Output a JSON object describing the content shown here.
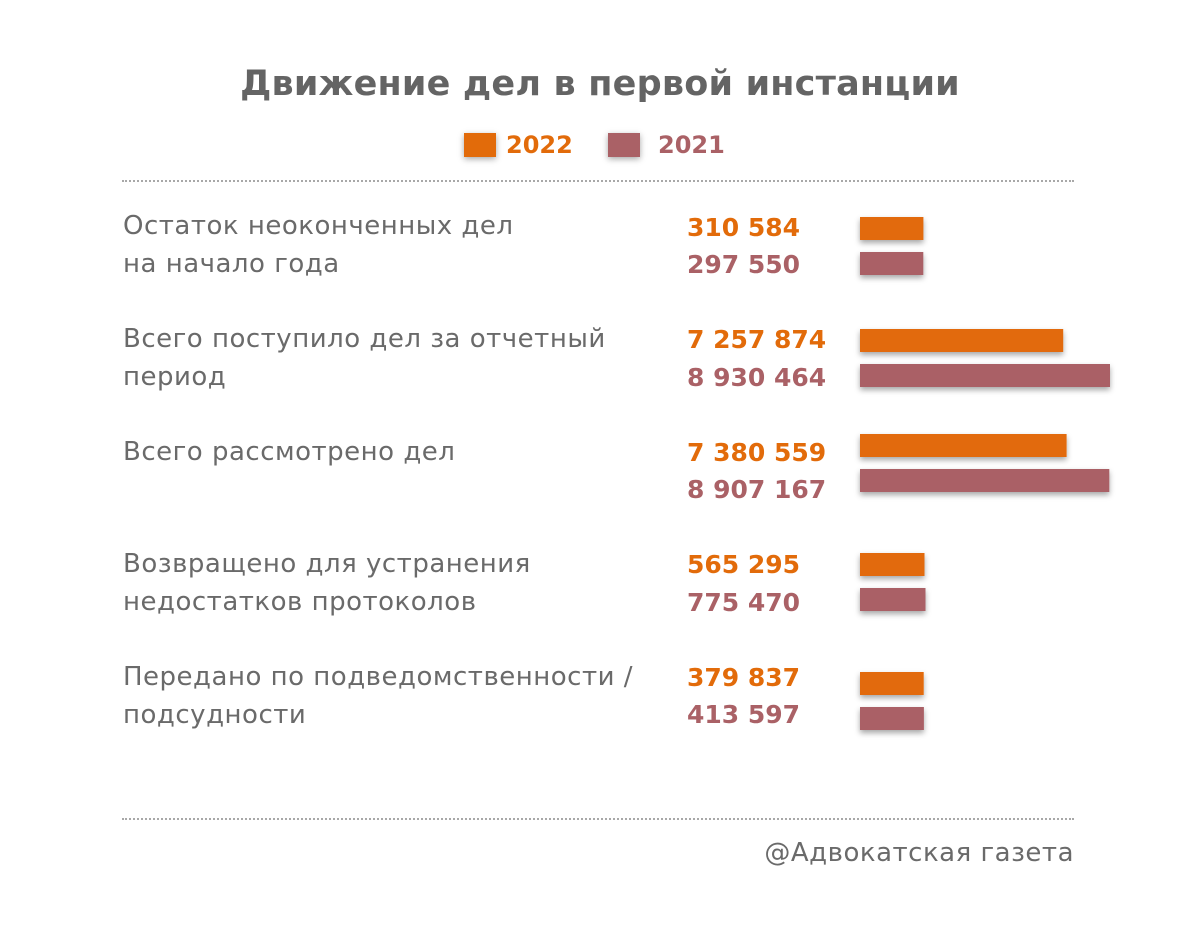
{
  "chart_data": {
    "type": "bar",
    "orientation": "horizontal",
    "title": "Движение дел в первой инстанции",
    "legend_placement": "top",
    "series": [
      {
        "name": "2022",
        "color": "#e26b0a",
        "values": [
          310584,
          7257874,
          7380559,
          565295,
          379837
        ],
        "labels": [
          "310 584",
          "7 257 874",
          "7 380 559",
          "565 295",
          "379 837"
        ]
      },
      {
        "name": "2021",
        "color": "#aa6166",
        "values": [
          297550,
          8930464,
          8907167,
          775470,
          413597
        ],
        "labels": [
          "297 550",
          "8 930 464",
          "8 907 167",
          "775 470",
          "413 597"
        ]
      }
    ],
    "categories": [
      "Остаток неоконченных дел\nна начало года",
      "Всего поступило дел за отчетный\nпериод",
      "Всего рассмотрено дел",
      "Возвращено для устранения\nнедостатков протоколов",
      "Передано по подведомственности /\nподсудности"
    ]
  },
  "footer": {
    "credit": "@Адвокатская газета"
  }
}
